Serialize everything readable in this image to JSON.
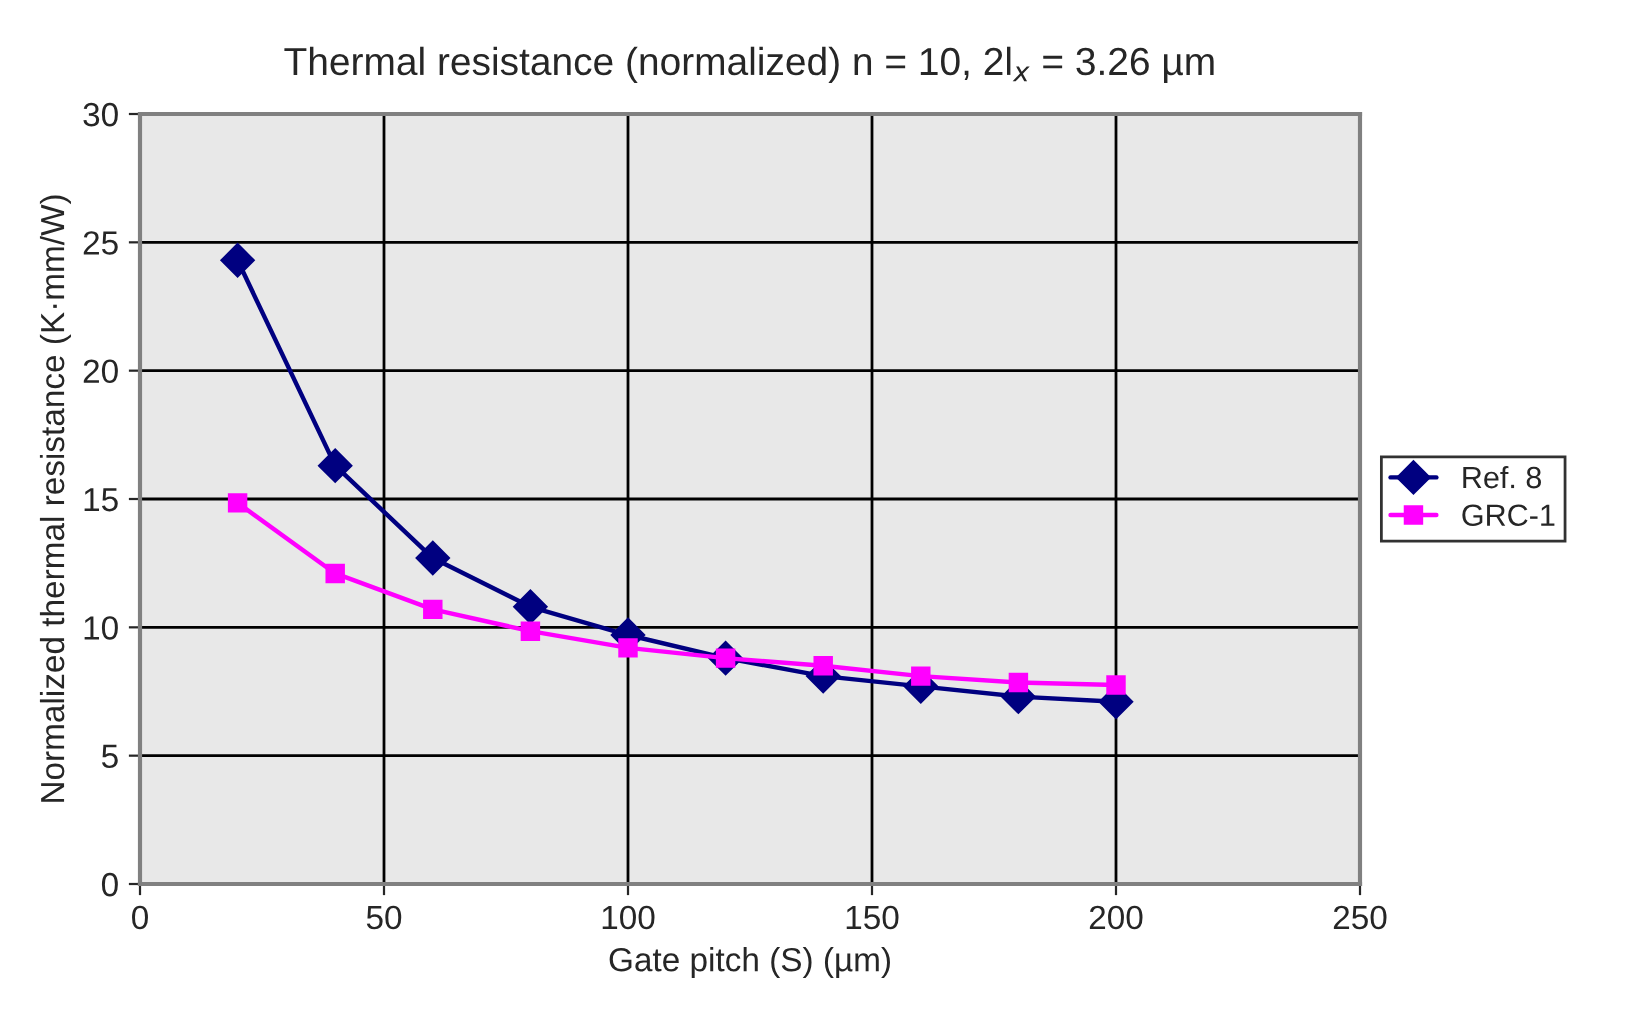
{
  "chart_data": {
    "type": "line",
    "title": "Thermal resistance (normalized) n = 10, 2l$_{x}$ = 3.26 µm",
    "xlabel": "Gate pitch (S) (µm)",
    "ylabel": "Normalized thermal resistance (K·mm/W)",
    "x": [
      20,
      40,
      60,
      80,
      100,
      120,
      140,
      160,
      180,
      200
    ],
    "series": [
      {
        "name": "Ref. 8",
        "color": "#000080",
        "marker": "diamond",
        "values": [
          24.3,
          16.3,
          12.7,
          10.8,
          9.7,
          8.8,
          8.1,
          7.7,
          7.3,
          7.1
        ]
      },
      {
        "name": "GRC-1",
        "color": "#ff00ff",
        "marker": "square",
        "values": [
          14.85,
          12.1,
          10.7,
          9.85,
          9.2,
          8.8,
          8.5,
          8.1,
          7.85,
          7.75
        ]
      }
    ],
    "xlim": [
      0,
      250
    ],
    "xticks": [
      0,
      50,
      100,
      150,
      200,
      250
    ],
    "ylim": [
      0,
      30
    ],
    "yticks": [
      0,
      5,
      10,
      15,
      20,
      25,
      30
    ],
    "grid": true,
    "legend": "right"
  }
}
